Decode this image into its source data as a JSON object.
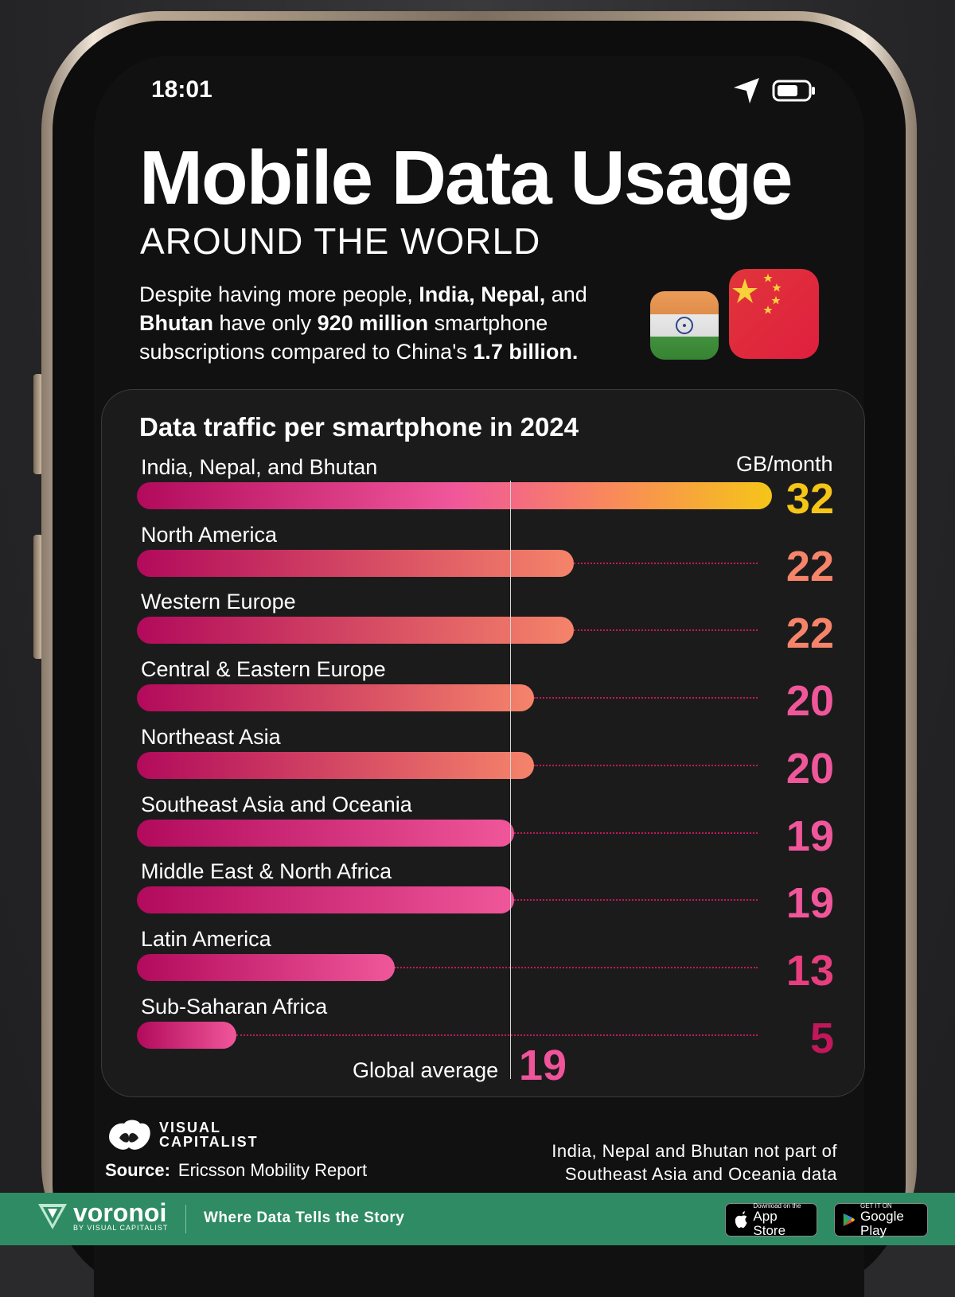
{
  "status_bar": {
    "time": "18:01"
  },
  "header": {
    "title": "Mobile Data Usage",
    "subtitle": "AROUND THE WORLD",
    "description": {
      "p1": "Despite having more people, ",
      "b1": "India, Nepal,",
      "p2": " and ",
      "b2": "Bhutan",
      "p3": " have only ",
      "b3": "920 million",
      "p4": " smartphone subscriptions compared to China's ",
      "b4": "1.7 billion."
    }
  },
  "chart_data": {
    "type": "bar",
    "orientation": "horizontal",
    "title": "Data traffic per smartphone in 2024",
    "unit": "GB/month",
    "categories": [
      "India, Nepal, and Bhutan",
      "North America",
      "Western Europe",
      "Central & Eastern Europe",
      "Northeast Asia",
      "Southeast Asia and Oceania",
      "Middle East & North Africa",
      "Latin America",
      "Sub-Saharan Africa"
    ],
    "values": [
      32,
      22,
      22,
      20,
      20,
      19,
      19,
      13,
      5
    ],
    "value_colors": [
      "#f5c518",
      "#f5846a",
      "#f5846a",
      "#f0579a",
      "#f0579a",
      "#f0579a",
      "#f0579a",
      "#e83e80",
      "#c2185b"
    ],
    "reference": {
      "label": "Global average",
      "value": 19
    },
    "xlim": [
      0,
      32
    ],
    "grid": false
  },
  "footer": {
    "brand": "VISUAL CAPITALIST",
    "brand_line1": "VISUAL",
    "brand_line2": "CAPITALIST",
    "source_label": "Source:",
    "source_text": "Ericsson Mobility Report",
    "note_line1": "India, Nepal and Bhutan not part of",
    "note_line2": "Southeast Asia and Oceania data"
  },
  "bottom_bar": {
    "brand": "voronoi",
    "brand_sub": "BY VISUAL CAPITALIST",
    "tagline": "Where Data Tells the Story",
    "app_store_small": "Download on the",
    "app_store_big": "App Store",
    "google_play_small": "GET IT ON",
    "google_play_big": "Google Play"
  },
  "colors": {
    "bar_start": "#b20a5c",
    "bar_pink": "#f0579a",
    "bar_salmon": "#f5846a",
    "bar_top_end": "#f5c518",
    "footer_green": "#2e8b63"
  }
}
